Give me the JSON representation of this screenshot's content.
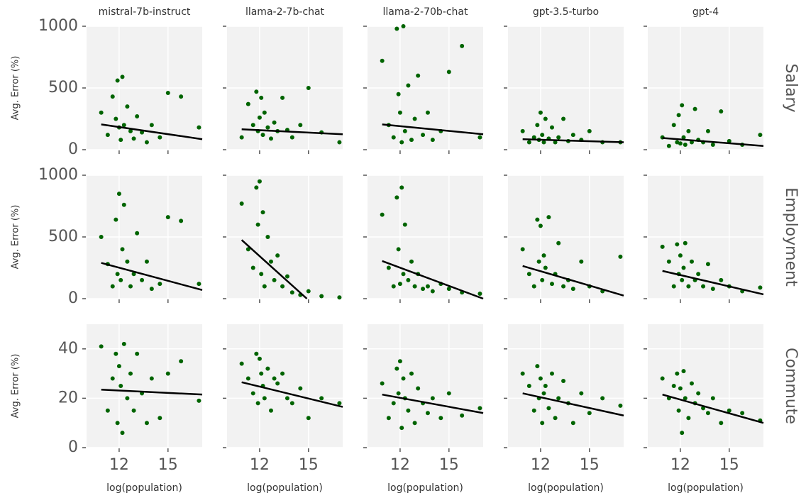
{
  "chart_data": [
    {
      "type": "scatter",
      "title": "mistral-7b-instruct",
      "ylabel": "Avg. Error (%)",
      "color": "#006400",
      "xlim": [
        10,
        17.1
      ],
      "ylim": [
        0,
        1000
      ],
      "xticks": [
        12,
        15
      ],
      "yticks": [
        0,
        500,
        1000
      ],
      "grid": true,
      "x": [
        10.9,
        11.3,
        11.6,
        11.8,
        11.9,
        12.0,
        12.1,
        12.2,
        12.3,
        12.5,
        12.7,
        12.9,
        13.1,
        13.4,
        13.7,
        14.0,
        14.5,
        15.0,
        15.8,
        16.9
      ],
      "y": [
        300,
        120,
        430,
        250,
        560,
        180,
        80,
        590,
        200,
        350,
        150,
        90,
        270,
        140,
        60,
        200,
        100,
        460,
        430,
        180
      ],
      "trend": {
        "x": [
          10.9,
          17.1
        ],
        "y": [
          205,
          85
        ]
      }
    },
    {
      "type": "scatter",
      "title": "llama-2-7b-chat",
      "color": "#006400",
      "xlim": [
        10,
        17.1
      ],
      "ylim": [
        0,
        1000
      ],
      "xticks": [
        12,
        15
      ],
      "yticks": [
        0,
        500,
        1000
      ],
      "grid": true,
      "x": [
        10.9,
        11.3,
        11.6,
        11.8,
        11.9,
        12.0,
        12.1,
        12.2,
        12.3,
        12.5,
        12.7,
        12.9,
        13.1,
        13.4,
        13.7,
        14.0,
        14.5,
        15.0,
        15.8,
        16.9
      ],
      "y": [
        100,
        370,
        200,
        470,
        150,
        260,
        420,
        120,
        300,
        180,
        90,
        220,
        150,
        420,
        160,
        100,
        200,
        500,
        140,
        60
      ],
      "trend": {
        "x": [
          10.9,
          17.1
        ],
        "y": [
          165,
          125
        ]
      }
    },
    {
      "type": "scatter",
      "title": "llama-2-70b-chat",
      "color": "#006400",
      "xlim": [
        10,
        17.1
      ],
      "ylim": [
        0,
        1000
      ],
      "xticks": [
        12,
        15
      ],
      "yticks": [
        0,
        500,
        1000
      ],
      "grid": true,
      "x": [
        10.9,
        11.3,
        11.6,
        11.8,
        11.9,
        12.0,
        12.1,
        12.2,
        12.3,
        12.5,
        12.7,
        12.9,
        13.1,
        13.4,
        13.7,
        14.0,
        14.5,
        15.0,
        15.8,
        16.9
      ],
      "y": [
        720,
        200,
        100,
        980,
        450,
        300,
        60,
        1000,
        150,
        520,
        80,
        250,
        600,
        120,
        300,
        80,
        150,
        630,
        840,
        100
      ],
      "trend": {
        "x": [
          10.9,
          17.1
        ],
        "y": [
          205,
          125
        ]
      }
    },
    {
      "type": "scatter",
      "title": "gpt-3.5-turbo",
      "color": "#006400",
      "xlim": [
        10,
        17.1
      ],
      "ylim": [
        0,
        1000
      ],
      "xticks": [
        12,
        15
      ],
      "yticks": [
        0,
        500,
        1000
      ],
      "grid": true,
      "x": [
        10.9,
        11.3,
        11.6,
        11.8,
        11.9,
        12.0,
        12.1,
        12.2,
        12.3,
        12.5,
        12.7,
        12.9,
        13.1,
        13.4,
        13.7,
        14.0,
        14.5,
        15.0,
        15.8,
        16.9
      ],
      "y": [
        150,
        60,
        100,
        200,
        80,
        300,
        120,
        60,
        250,
        90,
        180,
        60,
        100,
        250,
        70,
        120,
        80,
        150,
        60,
        60
      ],
      "trend": {
        "x": [
          10.9,
          17.1
        ],
        "y": [
          85,
          60
        ]
      }
    },
    {
      "type": "scatter",
      "title": "gpt-4",
      "row_label": "Salary",
      "color": "#006400",
      "xlim": [
        10,
        17.1
      ],
      "ylim": [
        0,
        1000
      ],
      "xticks": [
        12,
        15
      ],
      "yticks": [
        0,
        500,
        1000
      ],
      "grid": true,
      "x": [
        10.9,
        11.3,
        11.6,
        11.8,
        11.9,
        12.0,
        12.1,
        12.2,
        12.3,
        12.5,
        12.7,
        12.9,
        13.1,
        13.4,
        13.7,
        14.0,
        14.5,
        15.0,
        15.8,
        16.9
      ],
      "y": [
        100,
        30,
        200,
        60,
        280,
        50,
        360,
        100,
        40,
        150,
        60,
        330,
        80,
        60,
        150,
        40,
        310,
        70,
        40,
        120
      ],
      "trend": {
        "x": [
          10.9,
          17.1
        ],
        "y": [
          95,
          30
        ]
      }
    },
    {
      "type": "scatter",
      "ylabel": "Avg. Error (%)",
      "color": "#006400",
      "xlim": [
        10,
        17.1
      ],
      "ylim": [
        0,
        1000
      ],
      "xticks": [
        12,
        15
      ],
      "yticks": [
        0,
        500,
        1000
      ],
      "grid": true,
      "x": [
        10.9,
        11.3,
        11.6,
        11.8,
        11.9,
        12.0,
        12.1,
        12.2,
        12.3,
        12.5,
        12.7,
        12.9,
        13.1,
        13.4,
        13.7,
        14.0,
        14.5,
        15.0,
        15.8,
        16.9
      ],
      "y": [
        500,
        280,
        100,
        640,
        200,
        850,
        150,
        400,
        760,
        300,
        100,
        200,
        530,
        150,
        300,
        80,
        120,
        660,
        630,
        120
      ],
      "trend": {
        "x": [
          10.9,
          17.1
        ],
        "y": [
          290,
          70
        ]
      }
    },
    {
      "type": "scatter",
      "color": "#006400",
      "xlim": [
        10,
        17.1
      ],
      "ylim": [
        0,
        1000
      ],
      "xticks": [
        12,
        15
      ],
      "yticks": [
        0,
        500,
        1000
      ],
      "grid": true,
      "x": [
        10.9,
        11.3,
        11.6,
        11.8,
        11.9,
        12.0,
        12.1,
        12.2,
        12.3,
        12.5,
        12.7,
        12.9,
        13.1,
        13.4,
        13.7,
        14.0,
        14.5,
        15.0,
        15.8,
        16.9
      ],
      "y": [
        770,
        400,
        250,
        900,
        600,
        950,
        200,
        700,
        100,
        500,
        300,
        150,
        350,
        100,
        180,
        50,
        30,
        60,
        20,
        10
      ],
      "trend": {
        "x": [
          10.9,
          14.9
        ],
        "y": [
          475,
          0
        ]
      }
    },
    {
      "type": "scatter",
      "color": "#006400",
      "xlim": [
        10,
        17.1
      ],
      "ylim": [
        0,
        1000
      ],
      "xticks": [
        12,
        15
      ],
      "yticks": [
        0,
        500,
        1000
      ],
      "grid": true,
      "x": [
        10.9,
        11.3,
        11.6,
        11.8,
        11.9,
        12.0,
        12.1,
        12.2,
        12.3,
        12.5,
        12.7,
        12.9,
        13.1,
        13.4,
        13.7,
        14.0,
        14.5,
        15.0,
        15.8,
        16.9
      ],
      "y": [
        680,
        250,
        100,
        820,
        400,
        120,
        900,
        200,
        600,
        150,
        300,
        100,
        200,
        80,
        100,
        60,
        120,
        80,
        50,
        40
      ],
      "trend": {
        "x": [
          10.9,
          17.1
        ],
        "y": [
          305,
          0
        ]
      }
    },
    {
      "type": "scatter",
      "color": "#006400",
      "xlim": [
        10,
        17.1
      ],
      "ylim": [
        0,
        1000
      ],
      "xticks": [
        12,
        15
      ],
      "yticks": [
        0,
        500,
        1000
      ],
      "grid": true,
      "x": [
        10.9,
        11.3,
        11.6,
        11.8,
        11.9,
        12.0,
        12.1,
        12.2,
        12.3,
        12.5,
        12.7,
        12.9,
        13.1,
        13.4,
        13.7,
        14.0,
        14.5,
        15.0,
        15.8,
        16.9
      ],
      "y": [
        400,
        200,
        100,
        640,
        300,
        590,
        150,
        350,
        250,
        660,
        120,
        200,
        450,
        100,
        150,
        80,
        300,
        100,
        60,
        340
      ],
      "trend": {
        "x": [
          10.9,
          17.1
        ],
        "y": [
          265,
          25
        ]
      }
    },
    {
      "type": "scatter",
      "row_label": "Employment",
      "color": "#006400",
      "xlim": [
        10,
        17.1
      ],
      "ylim": [
        0,
        1000
      ],
      "xticks": [
        12,
        15
      ],
      "yticks": [
        0,
        500,
        1000
      ],
      "grid": true,
      "x": [
        10.9,
        11.3,
        11.6,
        11.8,
        11.9,
        12.0,
        12.1,
        12.2,
        12.3,
        12.5,
        12.7,
        12.9,
        13.1,
        13.4,
        13.7,
        14.0,
        14.5,
        15.0,
        15.8,
        16.9
      ],
      "y": [
        420,
        300,
        100,
        440,
        200,
        350,
        150,
        250,
        450,
        100,
        300,
        150,
        200,
        100,
        280,
        80,
        150,
        100,
        60,
        90
      ],
      "trend": {
        "x": [
          10.9,
          17.1
        ],
        "y": [
          225,
          35
        ]
      }
    },
    {
      "type": "scatter",
      "ylabel": "Avg. Error (%)",
      "xlabel": "log(population)",
      "color": "#006400",
      "xlim": [
        10,
        17.1
      ],
      "ylim": [
        0,
        50
      ],
      "xticks": [
        12,
        15
      ],
      "yticks": [
        0,
        20,
        40
      ],
      "grid": true,
      "x": [
        10.9,
        11.3,
        11.6,
        11.8,
        11.9,
        12.0,
        12.1,
        12.2,
        12.3,
        12.5,
        12.7,
        12.9,
        13.1,
        13.4,
        13.7,
        14.0,
        14.5,
        15.0,
        15.8,
        16.9
      ],
      "y": [
        41,
        15,
        28,
        38,
        10,
        33,
        25,
        6,
        42,
        20,
        30,
        15,
        38,
        22,
        10,
        28,
        12,
        30,
        35,
        19
      ],
      "trend": {
        "x": [
          10.9,
          17.1
        ],
        "y": [
          23.5,
          21.5
        ]
      }
    },
    {
      "type": "scatter",
      "xlabel": "log(population)",
      "color": "#006400",
      "xlim": [
        10,
        17.1
      ],
      "ylim": [
        0,
        50
      ],
      "xticks": [
        12,
        15
      ],
      "yticks": [
        0,
        20,
        40
      ],
      "grid": true,
      "x": [
        10.9,
        11.3,
        11.6,
        11.8,
        11.9,
        12.0,
        12.1,
        12.2,
        12.3,
        12.5,
        12.7,
        12.9,
        13.1,
        13.4,
        13.7,
        14.0,
        14.5,
        15.0,
        15.8,
        16.9
      ],
      "y": [
        34,
        28,
        22,
        38,
        18,
        36,
        30,
        25,
        20,
        32,
        15,
        28,
        26,
        30,
        20,
        18,
        24,
        12,
        20,
        18
      ],
      "trend": {
        "x": [
          10.9,
          17.1
        ],
        "y": [
          26.5,
          16.5
        ]
      }
    },
    {
      "type": "scatter",
      "xlabel": "log(population)",
      "color": "#006400",
      "xlim": [
        10,
        17.1
      ],
      "ylim": [
        0,
        50
      ],
      "xticks": [
        12,
        15
      ],
      "yticks": [
        0,
        20,
        40
      ],
      "grid": true,
      "x": [
        10.9,
        11.3,
        11.6,
        11.8,
        11.9,
        12.0,
        12.1,
        12.2,
        12.3,
        12.5,
        12.7,
        12.9,
        13.1,
        13.4,
        13.7,
        14.0,
        14.5,
        15.0,
        15.8,
        16.9
      ],
      "y": [
        26,
        12,
        18,
        32,
        22,
        35,
        8,
        28,
        20,
        15,
        30,
        10,
        24,
        18,
        14,
        20,
        12,
        22,
        13,
        16
      ],
      "trend": {
        "x": [
          10.9,
          17.1
        ],
        "y": [
          21.5,
          14
        ]
      }
    },
    {
      "type": "scatter",
      "xlabel": "log(population)",
      "color": "#006400",
      "xlim": [
        10,
        17.1
      ],
      "ylim": [
        0,
        50
      ],
      "xticks": [
        12,
        15
      ],
      "yticks": [
        0,
        20,
        40
      ],
      "grid": true,
      "x": [
        10.9,
        11.3,
        11.6,
        11.8,
        11.9,
        12.0,
        12.1,
        12.2,
        12.3,
        12.5,
        12.7,
        12.9,
        13.1,
        13.4,
        13.7,
        14.0,
        14.5,
        15.0,
        15.8,
        16.9
      ],
      "y": [
        30,
        25,
        15,
        33,
        20,
        28,
        10,
        22,
        25,
        16,
        30,
        12,
        20,
        27,
        18,
        10,
        22,
        14,
        20,
        17
      ],
      "trend": {
        "x": [
          10.9,
          17.1
        ],
        "y": [
          22,
          13
        ]
      }
    },
    {
      "type": "scatter",
      "xlabel": "log(population)",
      "row_label": "Commute",
      "color": "#006400",
      "xlim": [
        10,
        17.1
      ],
      "ylim": [
        0,
        50
      ],
      "xticks": [
        12,
        15
      ],
      "yticks": [
        0,
        20,
        40
      ],
      "grid": true,
      "x": [
        10.9,
        11.3,
        11.6,
        11.8,
        11.9,
        12.0,
        12.1,
        12.2,
        12.3,
        12.5,
        12.7,
        12.9,
        13.1,
        13.4,
        13.7,
        14.0,
        14.5,
        15.0,
        15.8,
        16.9
      ],
      "y": [
        28,
        20,
        25,
        30,
        15,
        24,
        6,
        31,
        20,
        12,
        26,
        18,
        22,
        16,
        14,
        20,
        10,
        15,
        14,
        11
      ],
      "trend": {
        "x": [
          10.9,
          17.1
        ],
        "y": [
          21.5,
          10
        ]
      }
    }
  ]
}
